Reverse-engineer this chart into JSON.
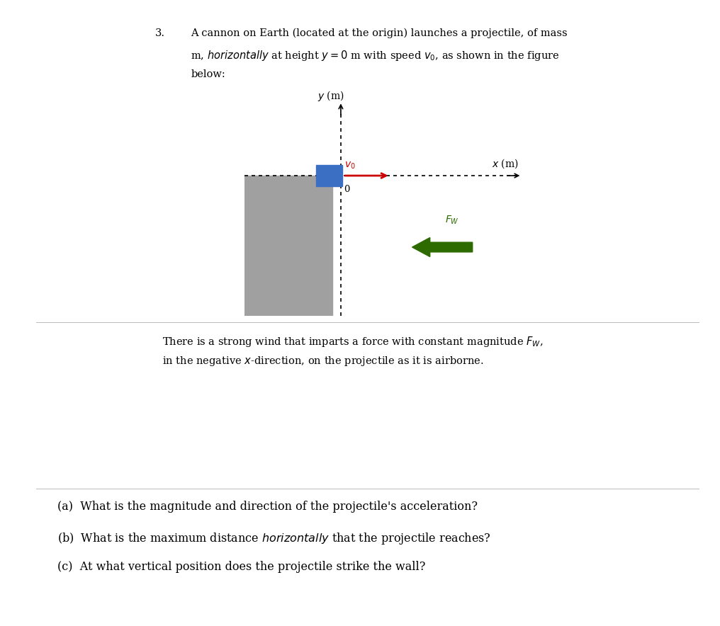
{
  "bg_color": "#ffffff",
  "fig_width": 10.16,
  "fig_height": 8.84,
  "wall_color": "#a0a0a0",
  "cannon_color": "#3a6fc4",
  "arrow_red_color": "#cc0000",
  "wind_arrow_color": "#2d6a00",
  "text_color": "#000000",
  "problem_number": "3.",
  "line1": "A cannon on Earth (located at the origin) launches a projectile, of mass",
  "line2_pre": "m, ",
  "line2_italic": "horizontally",
  "line2_post": " at height $y = 0$ m with speed $v_0$, as shown in the figure",
  "line3": "below:",
  "para_line1": "There is a strong wind that imparts a force with constant magnitude $F_W$,",
  "para_line2": "in the negative $x$-direction, on the projectile as it is airborne.",
  "qa": "(a)  What is the magnitude and direction of the projectile's acceleration?",
  "qb_pre": "(b)  What is the maximum distance ",
  "qb_italic": "horizontally",
  "qb_post": " that the projectile reaches?",
  "qc": "(c)  At what vertical position does the projectile strike the wall?",
  "x_label": "$x$ (m)",
  "y_label": "$y$ (m)",
  "v0_label": "$v_0$",
  "fw_label": "$F_W$",
  "origin_label": "0"
}
